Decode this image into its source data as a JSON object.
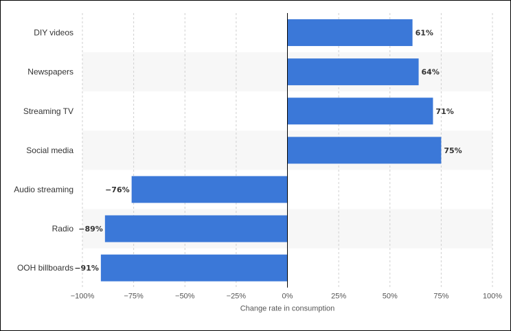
{
  "chart_data": {
    "type": "bar",
    "orientation": "horizontal",
    "categories": [
      "DIY videos",
      "Newspapers",
      "Streaming TV",
      "Social media",
      "Audio streaming",
      "Radio",
      "OOH billboards"
    ],
    "values": [
      61,
      64,
      71,
      75,
      -76,
      -89,
      -91
    ],
    "value_labels": [
      "61%",
      "64%",
      "71%",
      "75%",
      "−76%",
      "−89%",
      "−91%"
    ],
    "xlim": [
      -100,
      100
    ],
    "x_ticks": [
      -100,
      -75,
      -50,
      -25,
      0,
      25,
      50,
      75,
      100
    ],
    "x_tick_labels": [
      "−100%",
      "−75%",
      "−50%",
      "−25%",
      "0%",
      "25%",
      "50%",
      "75%",
      "100%"
    ],
    "xlabel": "Change rate in consumption",
    "ylabel": "",
    "title": "",
    "grid": "vertical dashed",
    "bar_color": "#3b78d8",
    "band_color": "#f7f7f7"
  }
}
